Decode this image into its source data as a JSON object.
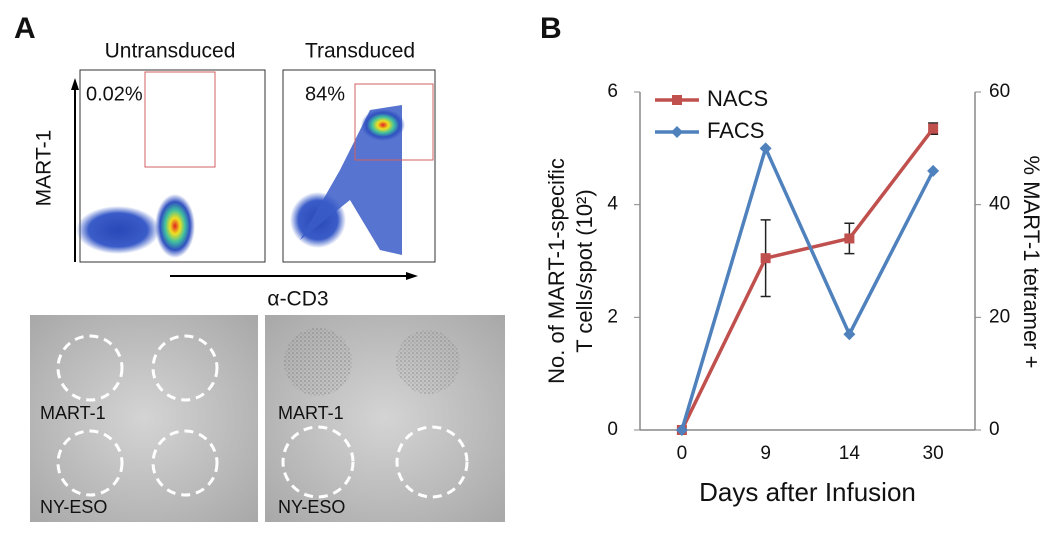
{
  "panel_labels": [
    "A",
    "B"
  ],
  "panel_a": {
    "flow": {
      "titles": [
        "Untransduced",
        "Transduced"
      ],
      "gates": [
        "0.02%",
        "84%"
      ],
      "y_label": "MART-1",
      "x_label": "α-CD3"
    },
    "elispot": {
      "left": [
        "MART-1",
        "NY-ESO"
      ],
      "right": [
        "MART-1",
        "NY-ESO"
      ]
    }
  },
  "chart_data": {
    "type": "line",
    "categories": [
      "0",
      "9",
      "14",
      "30"
    ],
    "x_label": "Days after Infusion",
    "y_label": [
      "No. of MART-1-specific",
      "T cells/spot (10²)"
    ],
    "y2_label": "% MART-1 tetramer +",
    "ylim": [
      0,
      6
    ],
    "yticks": [
      0,
      2,
      4,
      6
    ],
    "y2lim": [
      0,
      60
    ],
    "y2ticks": [
      0,
      20,
      40,
      60
    ],
    "legend": "upper left",
    "series": [
      {
        "name": "NACS",
        "color": "#c0504d",
        "marker": "square",
        "values": [
          0,
          3.05,
          3.4,
          5.35
        ],
        "errors": [
          0,
          0.68,
          0.27,
          0.1
        ]
      },
      {
        "name": "FACS",
        "color": "#4f81bd",
        "marker": "diamond",
        "axis": "y2",
        "values": [
          0,
          50,
          17,
          46
        ]
      }
    ]
  }
}
